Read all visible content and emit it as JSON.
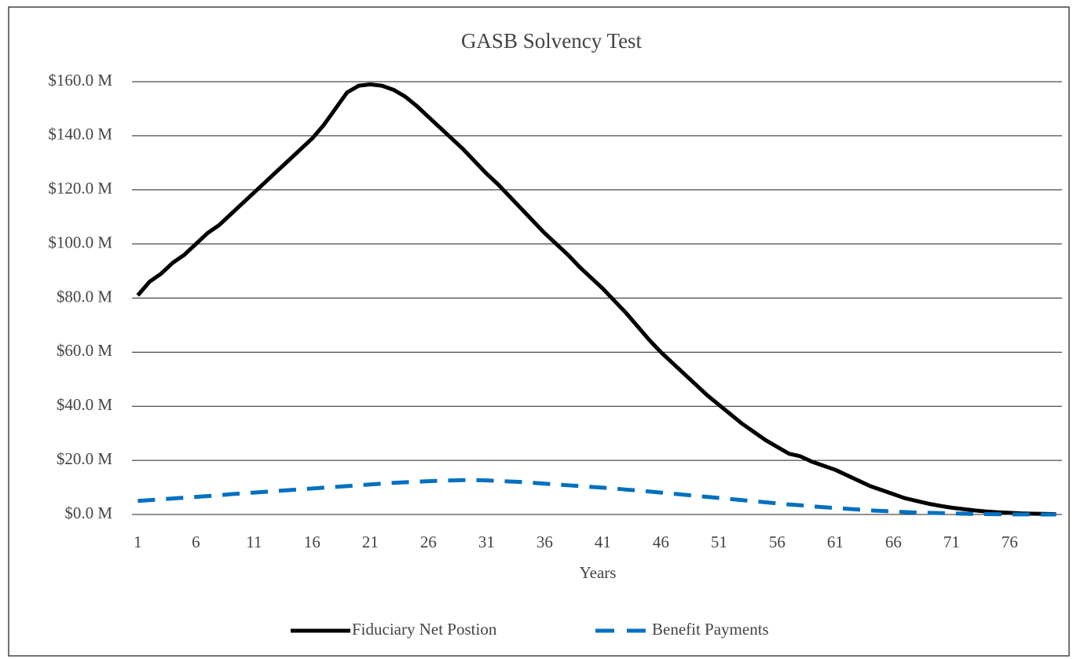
{
  "chart_data": {
    "type": "line",
    "title": "GASB Solvency Test",
    "x_label": "Years",
    "x": [
      1,
      2,
      3,
      4,
      5,
      6,
      7,
      8,
      9,
      10,
      11,
      12,
      13,
      14,
      15,
      16,
      17,
      18,
      19,
      20,
      21,
      22,
      23,
      24,
      25,
      26,
      27,
      28,
      29,
      30,
      31,
      32,
      33,
      34,
      35,
      36,
      37,
      38,
      39,
      40,
      41,
      42,
      43,
      44,
      45,
      46,
      47,
      48,
      49,
      50,
      51,
      52,
      53,
      54,
      55,
      56,
      57,
      58,
      59,
      60,
      61,
      62,
      63,
      64,
      65,
      66,
      67,
      68,
      69,
      70,
      71,
      72,
      73,
      74,
      75,
      76,
      77,
      78,
      79,
      80
    ],
    "series": [
      {
        "name": "Fiduciary Net Postion",
        "color": "#000000",
        "dash": false,
        "values": [
          81,
          86,
          89,
          93,
          96,
          100,
          104,
          107,
          111,
          115,
          119,
          123,
          127,
          131,
          135,
          139,
          144,
          150,
          156,
          158.5,
          159,
          158.5,
          157,
          154.5,
          151,
          147,
          143,
          139,
          135,
          130.5,
          126,
          122,
          117.5,
          113,
          108.5,
          104,
          100,
          96,
          91.5,
          87.5,
          83.5,
          79,
          74.5,
          69.5,
          64.5,
          60,
          56,
          52,
          48,
          44,
          40.5,
          37,
          33.5,
          30.5,
          27.5,
          25,
          22.5,
          21.5,
          19.5,
          18,
          16.5,
          14.5,
          12.5,
          10.5,
          9,
          7.5,
          6,
          5,
          4,
          3.2,
          2.5,
          2,
          1.5,
          1.1,
          0.8,
          0.6,
          0.4,
          0.3,
          0.2,
          0.1
        ]
      },
      {
        "name": "Benefit Payments",
        "color": "#0070c0",
        "dash": true,
        "values": [
          5,
          5.3,
          5.6,
          5.9,
          6.2,
          6.5,
          6.8,
          7.1,
          7.5,
          7.8,
          8.1,
          8.4,
          8.7,
          9,
          9.3,
          9.6,
          9.9,
          10.2,
          10.5,
          10.8,
          11.1,
          11.4,
          11.7,
          11.9,
          12.1,
          12.3,
          12.5,
          12.6,
          12.7,
          12.7,
          12.6,
          12.4,
          12.2,
          12,
          11.7,
          11.4,
          11.1,
          10.8,
          10.5,
          10.2,
          9.9,
          9.6,
          9.2,
          8.9,
          8.5,
          8.1,
          7.7,
          7.3,
          6.9,
          6.5,
          6.1,
          5.7,
          5.3,
          4.9,
          4.5,
          4.1,
          3.7,
          3.4,
          3,
          2.7,
          2.4,
          2.1,
          1.8,
          1.5,
          1.3,
          1.1,
          0.9,
          0.7,
          0.6,
          0.5,
          0.4,
          0.3,
          0.2,
          0.15,
          0.1,
          0.05,
          0.03,
          0.02,
          0.01,
          0.01
        ]
      }
    ],
    "xlim": [
      0.5,
      80.5
    ],
    "xticks": [
      1,
      6,
      11,
      16,
      21,
      26,
      31,
      36,
      41,
      46,
      51,
      56,
      61,
      66,
      71,
      76
    ],
    "ylim": [
      0,
      160
    ],
    "yticks": [
      {
        "value": 0,
        "label": "$0.0 M"
      },
      {
        "value": 20,
        "label": "$20.0 M"
      },
      {
        "value": 40,
        "label": "$40.0 M"
      },
      {
        "value": 60,
        "label": "$60.0 M"
      },
      {
        "value": 80,
        "label": "$80.0 M"
      },
      {
        "value": 100,
        "label": "$100.0 M"
      },
      {
        "value": 120,
        "label": "$120.0 M"
      },
      {
        "value": 140,
        "label": "$140.0 M"
      },
      {
        "value": 160,
        "label": "$160.0 M"
      }
    ],
    "grid": true,
    "legend": "bottom"
  }
}
